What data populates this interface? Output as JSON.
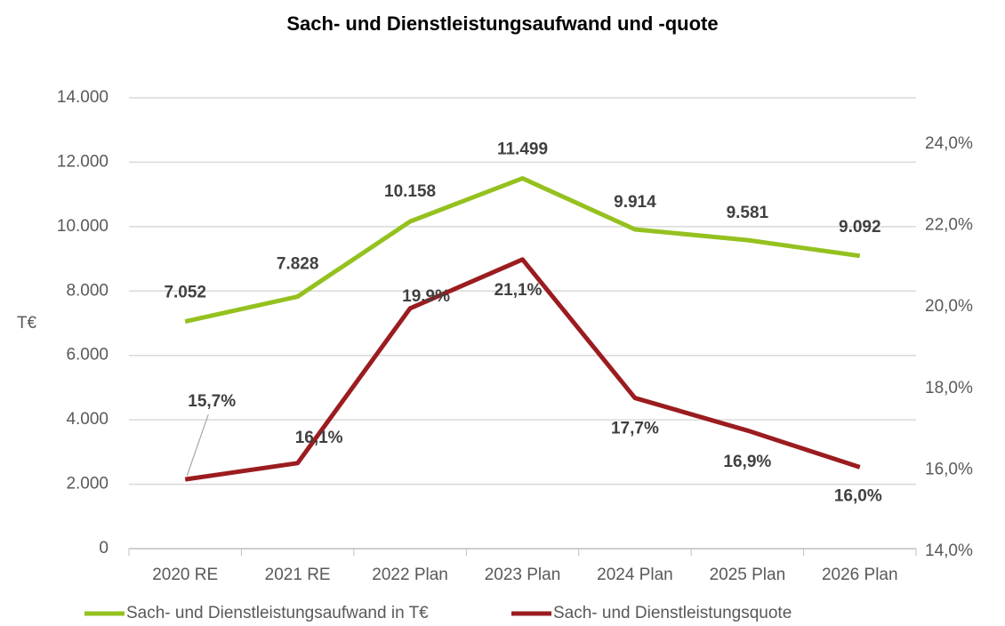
{
  "chart_data": {
    "type": "line",
    "title": "Sach- und Dienstleistungsaufwand und -quote",
    "y_label": "T€",
    "categories": [
      "2020 RE",
      "2021 RE",
      "2022 Plan",
      "2023 Plan",
      "2024 Plan",
      "2025 Plan",
      "2026 Plan"
    ],
    "series": [
      {
        "name": "Sach- und Dienstleistungsaufwand in T€",
        "color": "#95c11f",
        "values": [
          7052,
          7828,
          10158,
          11499,
          9914,
          9581,
          9092
        ],
        "value_labels": [
          "7.052",
          "7.828",
          "10.158",
          "11.499",
          "9.914",
          "9.581",
          "9.092"
        ]
      },
      {
        "name": "Sach- und Dienstleistungsquote",
        "color": "#9b1c20",
        "axis": "y2",
        "values": [
          15.7,
          16.1,
          19.9,
          21.1,
          17.7,
          16.9,
          16.0
        ],
        "value_labels": [
          "15,7%",
          "16,1%",
          "19.9%",
          "21,1%",
          "17,7%",
          "16,9%",
          "16,0%"
        ]
      }
    ],
    "ylim": [
      0,
      14000
    ],
    "yticks": [
      0,
      {
        "value": 2000,
        "label": "2.000"
      },
      {
        "value": 4000,
        "label": "4.000"
      },
      {
        "value": 6000,
        "label": "6.000"
      },
      {
        "value": 8000,
        "label": "8.000"
      },
      {
        "value": 10000,
        "label": "10.000"
      },
      {
        "value": 12000,
        "label": "12.000"
      },
      {
        "value": 14000,
        "label": "14.000"
      }
    ],
    "y2lim": [
      14,
      25.07
    ],
    "y2ticks": [
      {
        "value": 14,
        "label": "14,0%"
      },
      {
        "value": 16,
        "label": "16,0%"
      },
      {
        "value": 18,
        "label": "18,0%"
      },
      {
        "value": 20,
        "label": "20,0%"
      },
      {
        "value": 22,
        "label": "22,0%"
      },
      {
        "value": 24,
        "label": "24,0%"
      }
    ],
    "grid": true,
    "legend": "bottom"
  }
}
